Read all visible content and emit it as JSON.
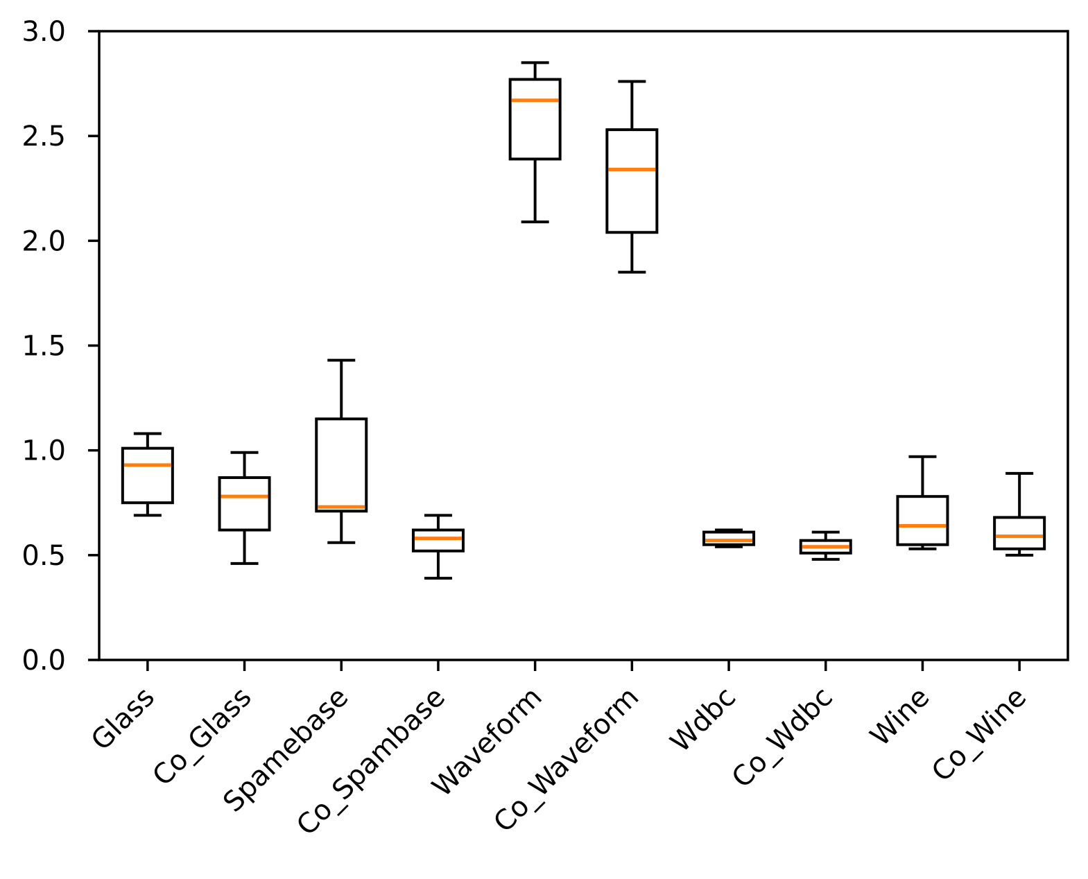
{
  "figure": {
    "background": "#ffffff"
  },
  "chart_data": {
    "type": "boxplot",
    "title": "",
    "xlabel": "",
    "ylabel": "",
    "categories": [
      "Glass",
      "Co_Glass",
      "Spamebase",
      "Co_Spambase",
      "Waveform",
      "Co_Waveform",
      "Wdbc",
      "Co_Wdbc",
      "Wine",
      "Co_Wine"
    ],
    "boxes": [
      {
        "name": "Glass",
        "whislo": 0.69,
        "q1": 0.75,
        "med": 0.93,
        "q3": 1.01,
        "whishi": 1.08
      },
      {
        "name": "Co_Glass",
        "whislo": 0.46,
        "q1": 0.62,
        "med": 0.78,
        "q3": 0.87,
        "whishi": 0.99
      },
      {
        "name": "Spamebase",
        "whislo": 0.56,
        "q1": 0.71,
        "med": 0.73,
        "q3": 1.15,
        "whishi": 1.43
      },
      {
        "name": "Co_Spambase",
        "whislo": 0.39,
        "q1": 0.52,
        "med": 0.58,
        "q3": 0.62,
        "whishi": 0.69
      },
      {
        "name": "Waveform",
        "whislo": 2.09,
        "q1": 2.39,
        "med": 2.67,
        "q3": 2.77,
        "whishi": 2.85
      },
      {
        "name": "Co_Waveform",
        "whislo": 1.85,
        "q1": 2.04,
        "med": 2.34,
        "q3": 2.53,
        "whishi": 2.76
      },
      {
        "name": "Wdbc",
        "whislo": 0.54,
        "q1": 0.55,
        "med": 0.57,
        "q3": 0.61,
        "whishi": 0.62
      },
      {
        "name": "Co_Wdbc",
        "whislo": 0.48,
        "q1": 0.51,
        "med": 0.54,
        "q3": 0.57,
        "whishi": 0.61
      },
      {
        "name": "Wine",
        "whislo": 0.53,
        "q1": 0.55,
        "med": 0.64,
        "q3": 0.78,
        "whishi": 0.97
      },
      {
        "name": "Co_Wine",
        "whislo": 0.5,
        "q1": 0.53,
        "med": 0.59,
        "q3": 0.68,
        "whishi": 0.89
      }
    ],
    "ylim": [
      0.0,
      3.0
    ],
    "yticks": [
      0.0,
      0.5,
      1.0,
      1.5,
      2.0,
      2.5,
      3.0
    ],
    "grid": false,
    "legend": "none",
    "x_tick_label_rotation_deg": 45,
    "colors": {
      "box": "#000000",
      "median": "#ff7f0e",
      "spine": "#000000",
      "tick_label": "#000000",
      "box_fill": "#ffffff"
    }
  }
}
